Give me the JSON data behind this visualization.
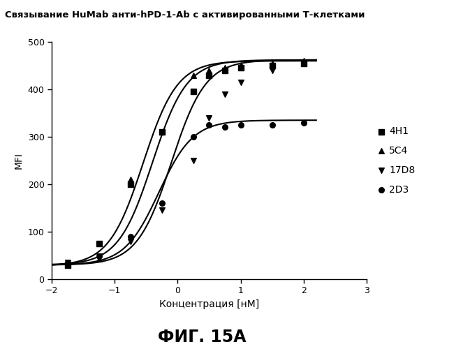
{
  "title": "Связывание HuMab анти-hPD-1-Ab с активированными Т-клетками",
  "xlabel": "Концентрация [нМ]",
  "ylabel": "MFI",
  "caption": "ФИГ. 15А",
  "xlim": [
    -2,
    3
  ],
  "ylim": [
    0,
    500
  ],
  "xticks": [
    -2,
    -1,
    0,
    1,
    2,
    3
  ],
  "yticks": [
    0,
    100,
    200,
    300,
    400,
    500
  ],
  "series": [
    {
      "label": "4H1",
      "marker": "s",
      "points_x": [
        -1.75,
        -1.25,
        -0.75,
        -0.25,
        0.25,
        0.5,
        0.75,
        1.0,
        1.5,
        2.0
      ],
      "points_y": [
        30,
        75,
        200,
        310,
        395,
        430,
        440,
        445,
        450,
        455
      ],
      "sigmoid_bottom": 28,
      "sigmoid_top": 460,
      "sigmoid_ec50": -0.55,
      "sigmoid_hill": 1.6
    },
    {
      "label": "5C4",
      "marker": "^",
      "points_x": [
        -1.75,
        -1.25,
        -0.75,
        -0.25,
        0.25,
        0.5,
        0.75,
        1.0,
        1.5,
        2.0
      ],
      "points_y": [
        33,
        42,
        210,
        310,
        430,
        440,
        445,
        452,
        455,
        460
      ],
      "sigmoid_bottom": 30,
      "sigmoid_top": 462,
      "sigmoid_ec50": -0.4,
      "sigmoid_hill": 1.6
    },
    {
      "label": "17D8",
      "marker": "v",
      "points_x": [
        -1.75,
        -1.25,
        -0.75,
        -0.25,
        0.25,
        0.5,
        0.75,
        1.0,
        1.5,
        2.0
      ],
      "points_y": [
        35,
        48,
        80,
        145,
        250,
        340,
        390,
        415,
        440,
        455
      ],
      "sigmoid_bottom": 30,
      "sigmoid_top": 462,
      "sigmoid_ec50": -0.1,
      "sigmoid_hill": 1.6
    },
    {
      "label": "2D3",
      "marker": "o",
      "points_x": [
        -1.75,
        -1.25,
        -0.75,
        -0.25,
        0.25,
        0.5,
        0.75,
        1.0,
        1.5,
        2.0
      ],
      "points_y": [
        35,
        48,
        90,
        160,
        300,
        325,
        320,
        325,
        325,
        330
      ],
      "sigmoid_bottom": 30,
      "sigmoid_top": 335,
      "sigmoid_ec50": -0.3,
      "sigmoid_hill": 1.6
    }
  ],
  "background_color": "#ffffff",
  "line_color": "#000000",
  "line_width": 1.5,
  "marker_size": 5.5
}
